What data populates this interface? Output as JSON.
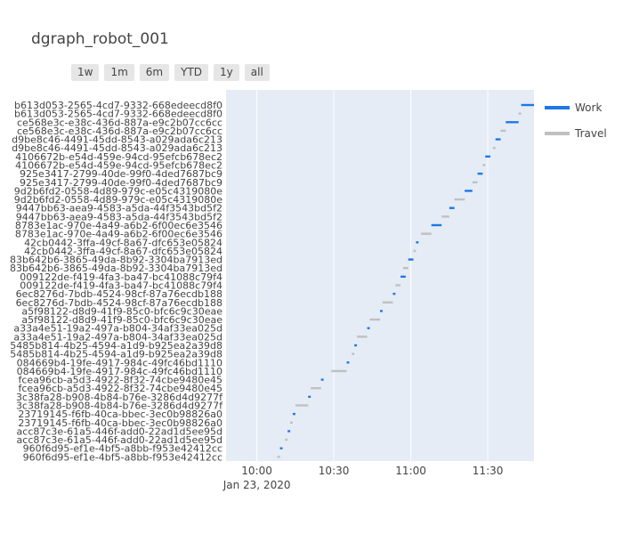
{
  "title": "dgraph_robot_001",
  "range_buttons": [
    "1w",
    "1m",
    "6m",
    "YTD",
    "1y",
    "all"
  ],
  "legend": [
    {
      "name": "Work",
      "color": "#1f77e6"
    },
    {
      "name": "Travel",
      "color": "#c0c0c0"
    }
  ],
  "chart_data": {
    "type": "gantt",
    "title": "dgraph_robot_001",
    "x_axis": {
      "ticks": [
        "10:00",
        "10:30",
        "11:00",
        "11:30"
      ],
      "date_label": "Jan 23, 2020",
      "range": [
        "09:48",
        "11:48"
      ]
    },
    "series": [
      {
        "name": "Work",
        "color": "#1f77e6"
      },
      {
        "name": "Travel",
        "color": "#c0c0c0"
      }
    ],
    "tasks": [
      {
        "label": "b613d053-2565-4cd7-9332-668edeecd8f0",
        "type": "Work",
        "start": "11:43",
        "end": "11:48"
      },
      {
        "label": "b613d053-2565-4cd7-9332-668edeecd8f0",
        "type": "Travel",
        "start": "11:42",
        "end": "11:43"
      },
      {
        "label": "ce568e3c-e38c-436d-887a-e9c2b07cc6cc",
        "type": "Work",
        "start": "11:37",
        "end": "11:42"
      },
      {
        "label": "ce568e3c-e38c-436d-887a-e9c2b07cc6cc",
        "type": "Travel",
        "start": "11:35",
        "end": "11:37"
      },
      {
        "label": "d9be8c46-4491-45dd-8543-a029ada6c213",
        "type": "Work",
        "start": "11:33",
        "end": "11:35"
      },
      {
        "label": "d9be8c46-4491-45dd-8543-a029ada6c213",
        "type": "Travel",
        "start": "11:32",
        "end": "11:33"
      },
      {
        "label": "4106672b-e54d-459e-94cd-95efcb678ec2",
        "type": "Work",
        "start": "11:29",
        "end": "11:31"
      },
      {
        "label": "4106672b-e54d-459e-94cd-95efcb678ec2",
        "type": "Travel",
        "start": "11:28",
        "end": "11:29"
      },
      {
        "label": "925e3417-2799-40de-99f0-4ded7687bc9",
        "type": "Work",
        "start": "11:26",
        "end": "11:28"
      },
      {
        "label": "925e3417-2799-40de-99f0-4ded7687bc9",
        "type": "Travel",
        "start": "11:24",
        "end": "11:26"
      },
      {
        "label": "9d2b6fd2-0558-4d89-979c-e05c4319080e",
        "type": "Work",
        "start": "11:21",
        "end": "11:24"
      },
      {
        "label": "9d2b6fd2-0558-4d89-979c-e05c4319080e",
        "type": "Travel",
        "start": "11:17",
        "end": "11:21"
      },
      {
        "label": "9447bb63-aea9-4583-a5da-44f3543bd5f2",
        "type": "Work",
        "start": "11:15",
        "end": "11:17"
      },
      {
        "label": "9447bb63-aea9-4583-a5da-44f3543bd5f2",
        "type": "Travel",
        "start": "11:12",
        "end": "11:15"
      },
      {
        "label": "8783e1ac-970e-4a49-a6b2-6f00ec6e3546",
        "type": "Work",
        "start": "11:08",
        "end": "11:12"
      },
      {
        "label": "8783e1ac-970e-4a49-a6b2-6f00ec6e3546",
        "type": "Travel",
        "start": "11:04",
        "end": "11:08"
      },
      {
        "label": "42cb0442-3ffa-49cf-8a67-dfc653e05824",
        "type": "Work",
        "start": "11:02",
        "end": "11:03"
      },
      {
        "label": "42cb0442-3ffa-49cf-8a67-dfc653e05824",
        "type": "Travel",
        "start": "11:01",
        "end": "11:02"
      },
      {
        "label": "83b642b6-3865-49da-8b92-3304ba7913ed",
        "type": "Work",
        "start": "10:59",
        "end": "11:01"
      },
      {
        "label": "83b642b6-3865-49da-8b92-3304ba7913ed",
        "type": "Travel",
        "start": "10:57",
        "end": "10:59"
      },
      {
        "label": "009122de-f419-4fa3-ba47-bc41088c79f4",
        "type": "Work",
        "start": "10:56",
        "end": "10:58"
      },
      {
        "label": "009122de-f419-4fa3-ba47-bc41088c79f4",
        "type": "Travel",
        "start": "10:54",
        "end": "10:56"
      },
      {
        "label": "6ec8276d-7bdb-4524-98cf-87a76ecdb188",
        "type": "Work",
        "start": "10:53",
        "end": "10:54"
      },
      {
        "label": "6ec8276d-7bdb-4524-98cf-87a76ecdb188",
        "type": "Travel",
        "start": "10:49",
        "end": "10:53"
      },
      {
        "label": "a5f98122-d8d9-41f9-85c0-bfc6c9c30eae",
        "type": "Work",
        "start": "10:48",
        "end": "10:49"
      },
      {
        "label": "a5f98122-d8d9-41f9-85c0-bfc6c9c30eae",
        "type": "Travel",
        "start": "10:44",
        "end": "10:48"
      },
      {
        "label": "a33a4e51-19a2-497a-b804-34af33ea025d",
        "type": "Work",
        "start": "10:43",
        "end": "10:44"
      },
      {
        "label": "a33a4e51-19a2-497a-b804-34af33ea025d",
        "type": "Travel",
        "start": "10:39",
        "end": "10:43"
      },
      {
        "label": "5485b814-4b25-4594-a1d9-b925ea2a39d8",
        "type": "Work",
        "start": "10:38",
        "end": "10:39"
      },
      {
        "label": "5485b814-4b25-4594-a1d9-b925ea2a39d8",
        "type": "Travel",
        "start": "10:37",
        "end": "10:38"
      },
      {
        "label": "084669b4-19fe-4917-984c-49fc46bd1110",
        "type": "Work",
        "start": "10:35",
        "end": "10:36"
      },
      {
        "label": "084669b4-19fe-4917-984c-49fc46bd1110",
        "type": "Travel",
        "start": "10:29",
        "end": "10:35"
      },
      {
        "label": "fcea96cb-a5d3-4922-8f32-74cbe9480e45",
        "type": "Work",
        "start": "10:25",
        "end": "10:26"
      },
      {
        "label": "fcea96cb-a5d3-4922-8f32-74cbe9480e45",
        "type": "Travel",
        "start": "10:21",
        "end": "10:25"
      },
      {
        "label": "3c38fa28-b908-4b84-b76e-3286d4d9277f",
        "type": "Work",
        "start": "10:20",
        "end": "10:21"
      },
      {
        "label": "3c38fa28-b908-4b84-b76e-3286d4d9277f",
        "type": "Travel",
        "start": "10:15",
        "end": "10:20"
      },
      {
        "label": "23719145-f6fb-40ca-bbec-3ec0b98826a0",
        "type": "Work",
        "start": "10:14",
        "end": "10:15"
      },
      {
        "label": "23719145-f6fb-40ca-bbec-3ec0b98826a0",
        "type": "Travel",
        "start": "10:13",
        "end": "10:14"
      },
      {
        "label": "acc87c3e-61a5-446f-add0-22ad1d5ee95d",
        "type": "Work",
        "start": "10:12",
        "end": "10:13"
      },
      {
        "label": "acc87c3e-61a5-446f-add0-22ad1d5ee95d",
        "type": "Travel",
        "start": "10:11",
        "end": "10:12"
      },
      {
        "label": "960f6d95-ef1e-4bf5-a8bb-f953e42412cc",
        "type": "Work",
        "start": "10:09",
        "end": "10:10"
      },
      {
        "label": "960f6d95-ef1e-4bf5-a8bb-f953e42412cc",
        "type": "Travel",
        "start": "10:08",
        "end": "10:09"
      }
    ]
  }
}
